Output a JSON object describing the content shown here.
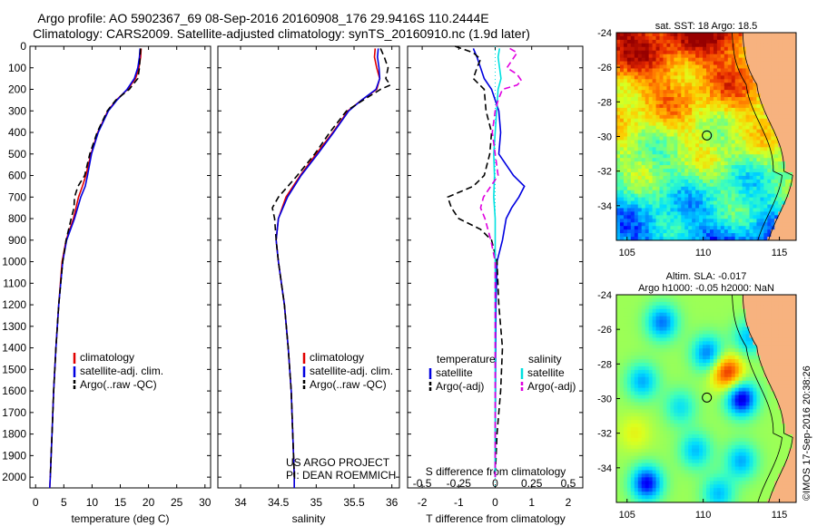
{
  "title_line1": "Argo profile: AO 5902367_69 08-Sep-2016 20160908_176 29.9416S 110.2444E",
  "title_line2": "Climatology: CARS2009. Satellite-adjusted climatology: synTS_20160910.nc (1.9d later)",
  "footer": {
    "project": "US ARGO PROJECT",
    "pi": "PI: DEAN ROEMMICH",
    "imos": "©IMOS 17-Sep-2016 20:38:26"
  },
  "colors": {
    "climatology": "#e00000",
    "satellite": "#0000e0",
    "argo": "#000000",
    "sal_satellite": "#00e0e0",
    "sal_argo": "#e000e0"
  },
  "depth_axis": {
    "min": 0,
    "max": 2050,
    "ticks": [
      0,
      100,
      200,
      300,
      400,
      500,
      600,
      700,
      800,
      900,
      1000,
      1100,
      1200,
      1300,
      1400,
      1500,
      1600,
      1700,
      1800,
      1900,
      2000
    ]
  },
  "chart_data": [
    {
      "type": "line",
      "id": "temperature",
      "xlabel": "temperature (deg C)",
      "ylabel": "",
      "xlim": [
        -1,
        31
      ],
      "ylim": [
        2050,
        0
      ],
      "xticks": [
        0,
        5,
        10,
        15,
        20,
        25,
        30
      ],
      "legend": [
        "climatology",
        "satellite-adj. clim.",
        "Argo(..raw -QC)"
      ],
      "legend_position": "lower-center",
      "series": [
        {
          "name": "climatology",
          "color": "#e00000",
          "style": "solid",
          "depth": [
            10,
            50,
            100,
            150,
            200,
            250,
            300,
            400,
            500,
            600,
            650,
            700,
            800,
            900,
            1000,
            1200,
            1400,
            1600,
            1800,
            2000,
            2050
          ],
          "values": [
            18.7,
            18.6,
            18.3,
            17.7,
            16.3,
            14.3,
            12.8,
            11.0,
            9.8,
            8.9,
            8.3,
            7.6,
            6.7,
            5.4,
            4.7,
            4.1,
            3.6,
            3.2,
            2.9,
            2.6,
            2.5
          ]
        },
        {
          "name": "satellite-adj. clim.",
          "color": "#0000e0",
          "style": "solid",
          "depth": [
            10,
            50,
            100,
            150,
            200,
            250,
            300,
            400,
            500,
            600,
            650,
            700,
            800,
            900,
            1000,
            1200,
            1400,
            1600,
            1800,
            2000,
            2050
          ],
          "values": [
            18.5,
            18.4,
            18.1,
            17.5,
            16.2,
            14.4,
            12.9,
            11.1,
            9.9,
            9.2,
            8.8,
            8.0,
            6.9,
            5.5,
            4.8,
            4.1,
            3.6,
            3.2,
            2.9,
            2.6,
            2.5
          ]
        },
        {
          "name": "Argo(..raw -QC)",
          "color": "#000000",
          "style": "dashed",
          "depth": [
            10,
            50,
            100,
            150,
            200,
            250,
            300,
            400,
            500,
            600,
            650,
            700,
            750,
            800,
            900,
            1000,
            1200,
            1400,
            1600,
            1800,
            2000
          ],
          "values": [
            18.6,
            18.5,
            18.4,
            18.1,
            16.6,
            14.2,
            12.7,
            10.9,
            9.6,
            8.7,
            7.5,
            6.9,
            6.8,
            6.3,
            5.4,
            4.8,
            4.1,
            3.6,
            3.2,
            2.9,
            2.6
          ]
        }
      ]
    },
    {
      "type": "line",
      "id": "salinity",
      "xlabel": "salinity",
      "ylabel": "",
      "xlim": [
        33.7,
        36.1
      ],
      "ylim": [
        2050,
        0
      ],
      "xticks": [
        34,
        34.5,
        35,
        35.5,
        36
      ],
      "xticklabels": [
        "34",
        "34.5",
        "35",
        "35.5",
        "36"
      ],
      "legend": [
        "climatology",
        "satellite-adj. clim.",
        "Argo(..raw -QC)"
      ],
      "legend_position": "lower-right",
      "series": [
        {
          "name": "climatology",
          "color": "#e00000",
          "style": "solid",
          "depth": [
            10,
            50,
            100,
            150,
            200,
            250,
            300,
            400,
            500,
            600,
            700,
            800,
            900,
            1000,
            1200,
            1400,
            1600,
            1800,
            2000,
            2050
          ],
          "values": [
            35.78,
            35.77,
            35.8,
            35.84,
            35.8,
            35.6,
            35.42,
            35.22,
            35.0,
            34.79,
            34.6,
            34.5,
            34.47,
            34.5,
            34.58,
            34.63,
            34.67,
            34.69,
            34.71,
            34.71
          ]
        },
        {
          "name": "satellite-adj. clim.",
          "color": "#0000e0",
          "style": "solid",
          "depth": [
            10,
            50,
            100,
            150,
            200,
            250,
            300,
            400,
            500,
            600,
            700,
            800,
            900,
            1000,
            1200,
            1400,
            1600,
            1800,
            2000,
            2050
          ],
          "values": [
            35.82,
            35.81,
            35.83,
            35.84,
            35.79,
            35.6,
            35.43,
            35.23,
            35.02,
            34.8,
            34.62,
            34.5,
            34.47,
            34.5,
            34.58,
            34.63,
            34.67,
            34.69,
            34.71,
            34.71
          ]
        },
        {
          "name": "Argo(..raw -QC)",
          "color": "#000000",
          "style": "dashed",
          "depth": [
            10,
            50,
            100,
            150,
            180,
            200,
            250,
            300,
            400,
            500,
            600,
            700,
            750,
            800,
            900,
            1000,
            1200,
            1400,
            1600,
            1800,
            2000
          ],
          "values": [
            35.85,
            35.9,
            35.95,
            35.92,
            35.98,
            35.85,
            35.62,
            35.4,
            35.18,
            34.98,
            34.75,
            34.5,
            34.42,
            34.45,
            34.47,
            34.5,
            34.58,
            34.63,
            34.67,
            34.69,
            34.71
          ]
        }
      ]
    },
    {
      "type": "line",
      "id": "differences",
      "xlabel": "T difference from climatology",
      "xlabel_top": "S difference from climatology",
      "xlim": [
        -2.4,
        2.4
      ],
      "ylim": [
        2050,
        0
      ],
      "xticks_T": [
        -2,
        -1,
        0,
        1,
        2
      ],
      "xticks_S": [
        -0.5,
        -0.25,
        0,
        0.25,
        0.5
      ],
      "xticklabels_S": [
        "-0.5",
        "-0.25",
        "0",
        "0.25",
        "0.5"
      ],
      "legend_temperature": {
        "title": "temperature",
        "entries": [
          "satellite",
          "Argo(-adj)"
        ]
      },
      "legend_salinity": {
        "title": "salinity",
        "entries": [
          "satellite",
          "Argo(-adj)"
        ]
      },
      "legend_position": "lower-center",
      "series": [
        {
          "name": "temperature satellite",
          "quantity": "T",
          "color": "#0000e0",
          "style": "solid",
          "depth": [
            10,
            50,
            100,
            150,
            200,
            300,
            400,
            500,
            600,
            650,
            700,
            750,
            800,
            900,
            1000,
            1200,
            1500,
            2000
          ],
          "values": [
            -0.6,
            -0.5,
            -0.4,
            -0.3,
            -0.1,
            0.1,
            0.15,
            0.1,
            0.5,
            0.8,
            0.65,
            0.45,
            0.3,
            0.2,
            0.05,
            0.02,
            0.01,
            0
          ]
        },
        {
          "name": "temperature Argo(-adj)",
          "quantity": "T",
          "color": "#000000",
          "style": "dashed",
          "depth": [
            0,
            30,
            60,
            100,
            150,
            200,
            300,
            400,
            500,
            600,
            650,
            700,
            750,
            800,
            850,
            900,
            1000,
            1200,
            1400,
            1600,
            1800,
            2000
          ],
          "values": [
            -1.1,
            -0.6,
            -0.4,
            -0.5,
            -0.6,
            -0.3,
            -0.25,
            -0.1,
            -0.15,
            -0.3,
            -0.6,
            -1.3,
            -1.2,
            -1.0,
            -0.4,
            -0.1,
            0.05,
            0.1,
            0.2,
            0.15,
            0.05,
            0
          ]
        },
        {
          "name": "salinity satellite",
          "quantity": "S",
          "color": "#00e0e0",
          "style": "solid",
          "depth": [
            10,
            50,
            100,
            150,
            200,
            300,
            400,
            500,
            600,
            700,
            800,
            900,
            1000,
            1200,
            1500,
            2000
          ],
          "values": [
            0.03,
            0.02,
            0.03,
            0.04,
            0.02,
            0.01,
            0.0,
            -0.01,
            -0.005,
            -0.01,
            0.0,
            0.0,
            0.0,
            0.0,
            0.0,
            0.0
          ]
        },
        {
          "name": "salinity Argo(-adj)",
          "quantity": "S",
          "color": "#e000e0",
          "style": "dashed",
          "depth": [
            10,
            30,
            60,
            100,
            130,
            160,
            180,
            200,
            250,
            300,
            400,
            500,
            600,
            700,
            750,
            800,
            900,
            1000,
            1200,
            1500,
            2000
          ],
          "values": [
            0.1,
            0.15,
            0.12,
            0.08,
            0.15,
            0.18,
            0.15,
            0.05,
            0.02,
            0.0,
            -0.02,
            0.0,
            0.02,
            -0.08,
            -0.1,
            -0.07,
            -0.03,
            0.0,
            0.0,
            0.0,
            0.0
          ]
        }
      ]
    },
    {
      "type": "heatmap",
      "id": "sst_map",
      "title": "sat. SST: 18 Argo: 18.5",
      "xticks": [
        105,
        110,
        115
      ],
      "yticks": [
        -24,
        -26,
        -28,
        -30,
        -32,
        -34
      ],
      "xlim": [
        104.3,
        116.1
      ],
      "ylim": [
        -36,
        -24
      ],
      "argo_position": [
        110.24,
        -29.94
      ],
      "description_values": {
        "north": "warm",
        "south": "cool"
      }
    },
    {
      "type": "heatmap",
      "id": "sla_map",
      "title_line1": "Altim. SLA: -0.017",
      "title_line2": "Argo h1000: -0.05 h2000: NaN",
      "xticks": [
        105,
        110,
        115
      ],
      "yticks": [
        -24,
        -26,
        -28,
        -30,
        -32,
        -34
      ],
      "xlim": [
        104.3,
        116.1
      ],
      "ylim": [
        -36,
        -24
      ],
      "argo_position": [
        110.24,
        -29.94
      ]
    }
  ]
}
